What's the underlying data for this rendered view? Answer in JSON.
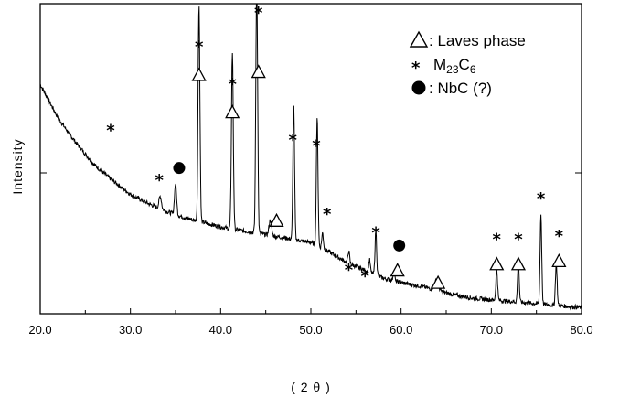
{
  "chart_data": {
    "type": "line",
    "title": "",
    "xlabel": "( 2 θ )",
    "ylabel": "Intensity",
    "xlim": [
      20.0,
      80.0
    ],
    "x_ticks": [
      "20.0",
      "30.0",
      "40.0",
      "50.0",
      "60.0",
      "70.0",
      "80.0"
    ],
    "grid": false,
    "legend_position": "top-right",
    "legend": [
      {
        "symbol": "triangle",
        "label": ": Laves phase"
      },
      {
        "symbol": "star",
        "label": "M23C6",
        "label_main": "M",
        "label_sub1": "23",
        "label_mid": "C",
        "label_sub2": "6"
      },
      {
        "symbol": "circle",
        "label": ": NbC (?)"
      }
    ],
    "baseline": {
      "x": [
        20,
        22,
        24,
        26,
        28,
        30,
        32,
        34,
        36,
        38,
        40,
        42,
        44,
        46,
        48,
        50,
        52,
        54,
        56,
        58,
        60,
        62,
        64,
        66,
        68,
        70,
        72,
        74,
        76,
        78,
        80
      ],
      "y": [
        0.74,
        0.63,
        0.55,
        0.48,
        0.43,
        0.385,
        0.355,
        0.33,
        0.31,
        0.295,
        0.28,
        0.27,
        0.26,
        0.25,
        0.24,
        0.23,
        0.2,
        0.165,
        0.14,
        0.115,
        0.1,
        0.09,
        0.075,
        0.06,
        0.05,
        0.045,
        0.04,
        0.035,
        0.03,
        0.025,
        0.02
      ]
    },
    "peaks": [
      {
        "x": 33.3,
        "height": 0.04,
        "width": 0.3
      },
      {
        "x": 35.0,
        "height": 0.1,
        "width": 0.25
      },
      {
        "x": 37.6,
        "height": 0.7,
        "width": 0.22
      },
      {
        "x": 41.3,
        "height": 0.57,
        "width": 0.22
      },
      {
        "x": 44.0,
        "height": 0.85,
        "width": 0.22
      },
      {
        "x": 45.5,
        "height": 0.05,
        "width": 0.3
      },
      {
        "x": 48.1,
        "height": 0.44,
        "width": 0.2
      },
      {
        "x": 50.7,
        "height": 0.41,
        "width": 0.2
      },
      {
        "x": 51.3,
        "height": 0.05,
        "width": 0.2
      },
      {
        "x": 54.2,
        "height": 0.04,
        "width": 0.2
      },
      {
        "x": 56.5,
        "height": 0.04,
        "width": 0.2
      },
      {
        "x": 57.2,
        "height": 0.14,
        "width": 0.2
      },
      {
        "x": 59.2,
        "height": 0.03,
        "width": 0.2
      },
      {
        "x": 63.9,
        "height": 0.03,
        "width": 0.5
      },
      {
        "x": 70.6,
        "height": 0.1,
        "width": 0.2
      },
      {
        "x": 73.0,
        "height": 0.13,
        "width": 0.2
      },
      {
        "x": 75.5,
        "height": 0.29,
        "width": 0.2
      },
      {
        "x": 77.2,
        "height": 0.14,
        "width": 0.2
      }
    ],
    "annotations": [
      {
        "symbol": "star",
        "x": 27.8,
        "y": 0.6
      },
      {
        "symbol": "star",
        "x": 33.2,
        "y": 0.44
      },
      {
        "symbol": "circle",
        "x": 35.4,
        "y": 0.47
      },
      {
        "symbol": "star",
        "x": 37.6,
        "y": 0.87
      },
      {
        "symbol": "triangle",
        "x": 37.6,
        "y": 0.77
      },
      {
        "symbol": "star",
        "x": 41.3,
        "y": 0.75
      },
      {
        "symbol": "triangle",
        "x": 41.3,
        "y": 0.65
      },
      {
        "symbol": "star",
        "x": 44.2,
        "y": 0.98
      },
      {
        "symbol": "triangle",
        "x": 44.2,
        "y": 0.78
      },
      {
        "symbol": "triangle",
        "x": 46.2,
        "y": 0.3
      },
      {
        "symbol": "star",
        "x": 48.0,
        "y": 0.57
      },
      {
        "symbol": "star",
        "x": 50.6,
        "y": 0.55
      },
      {
        "symbol": "star",
        "x": 51.8,
        "y": 0.33
      },
      {
        "symbol": "star",
        "x": 54.2,
        "y": 0.15
      },
      {
        "symbol": "star",
        "x": 56.0,
        "y": 0.13
      },
      {
        "symbol": "star",
        "x": 57.2,
        "y": 0.27
      },
      {
        "symbol": "circle",
        "x": 59.8,
        "y": 0.22
      },
      {
        "symbol": "triangle",
        "x": 59.6,
        "y": 0.14
      },
      {
        "symbol": "triangle",
        "x": 64.1,
        "y": 0.1
      },
      {
        "symbol": "star",
        "x": 70.6,
        "y": 0.25
      },
      {
        "symbol": "triangle",
        "x": 70.6,
        "y": 0.16
      },
      {
        "symbol": "star",
        "x": 73.0,
        "y": 0.25
      },
      {
        "symbol": "triangle",
        "x": 73.0,
        "y": 0.16
      },
      {
        "symbol": "star",
        "x": 75.5,
        "y": 0.38
      },
      {
        "symbol": "star",
        "x": 77.5,
        "y": 0.26
      },
      {
        "symbol": "triangle",
        "x": 77.5,
        "y": 0.17
      }
    ]
  }
}
